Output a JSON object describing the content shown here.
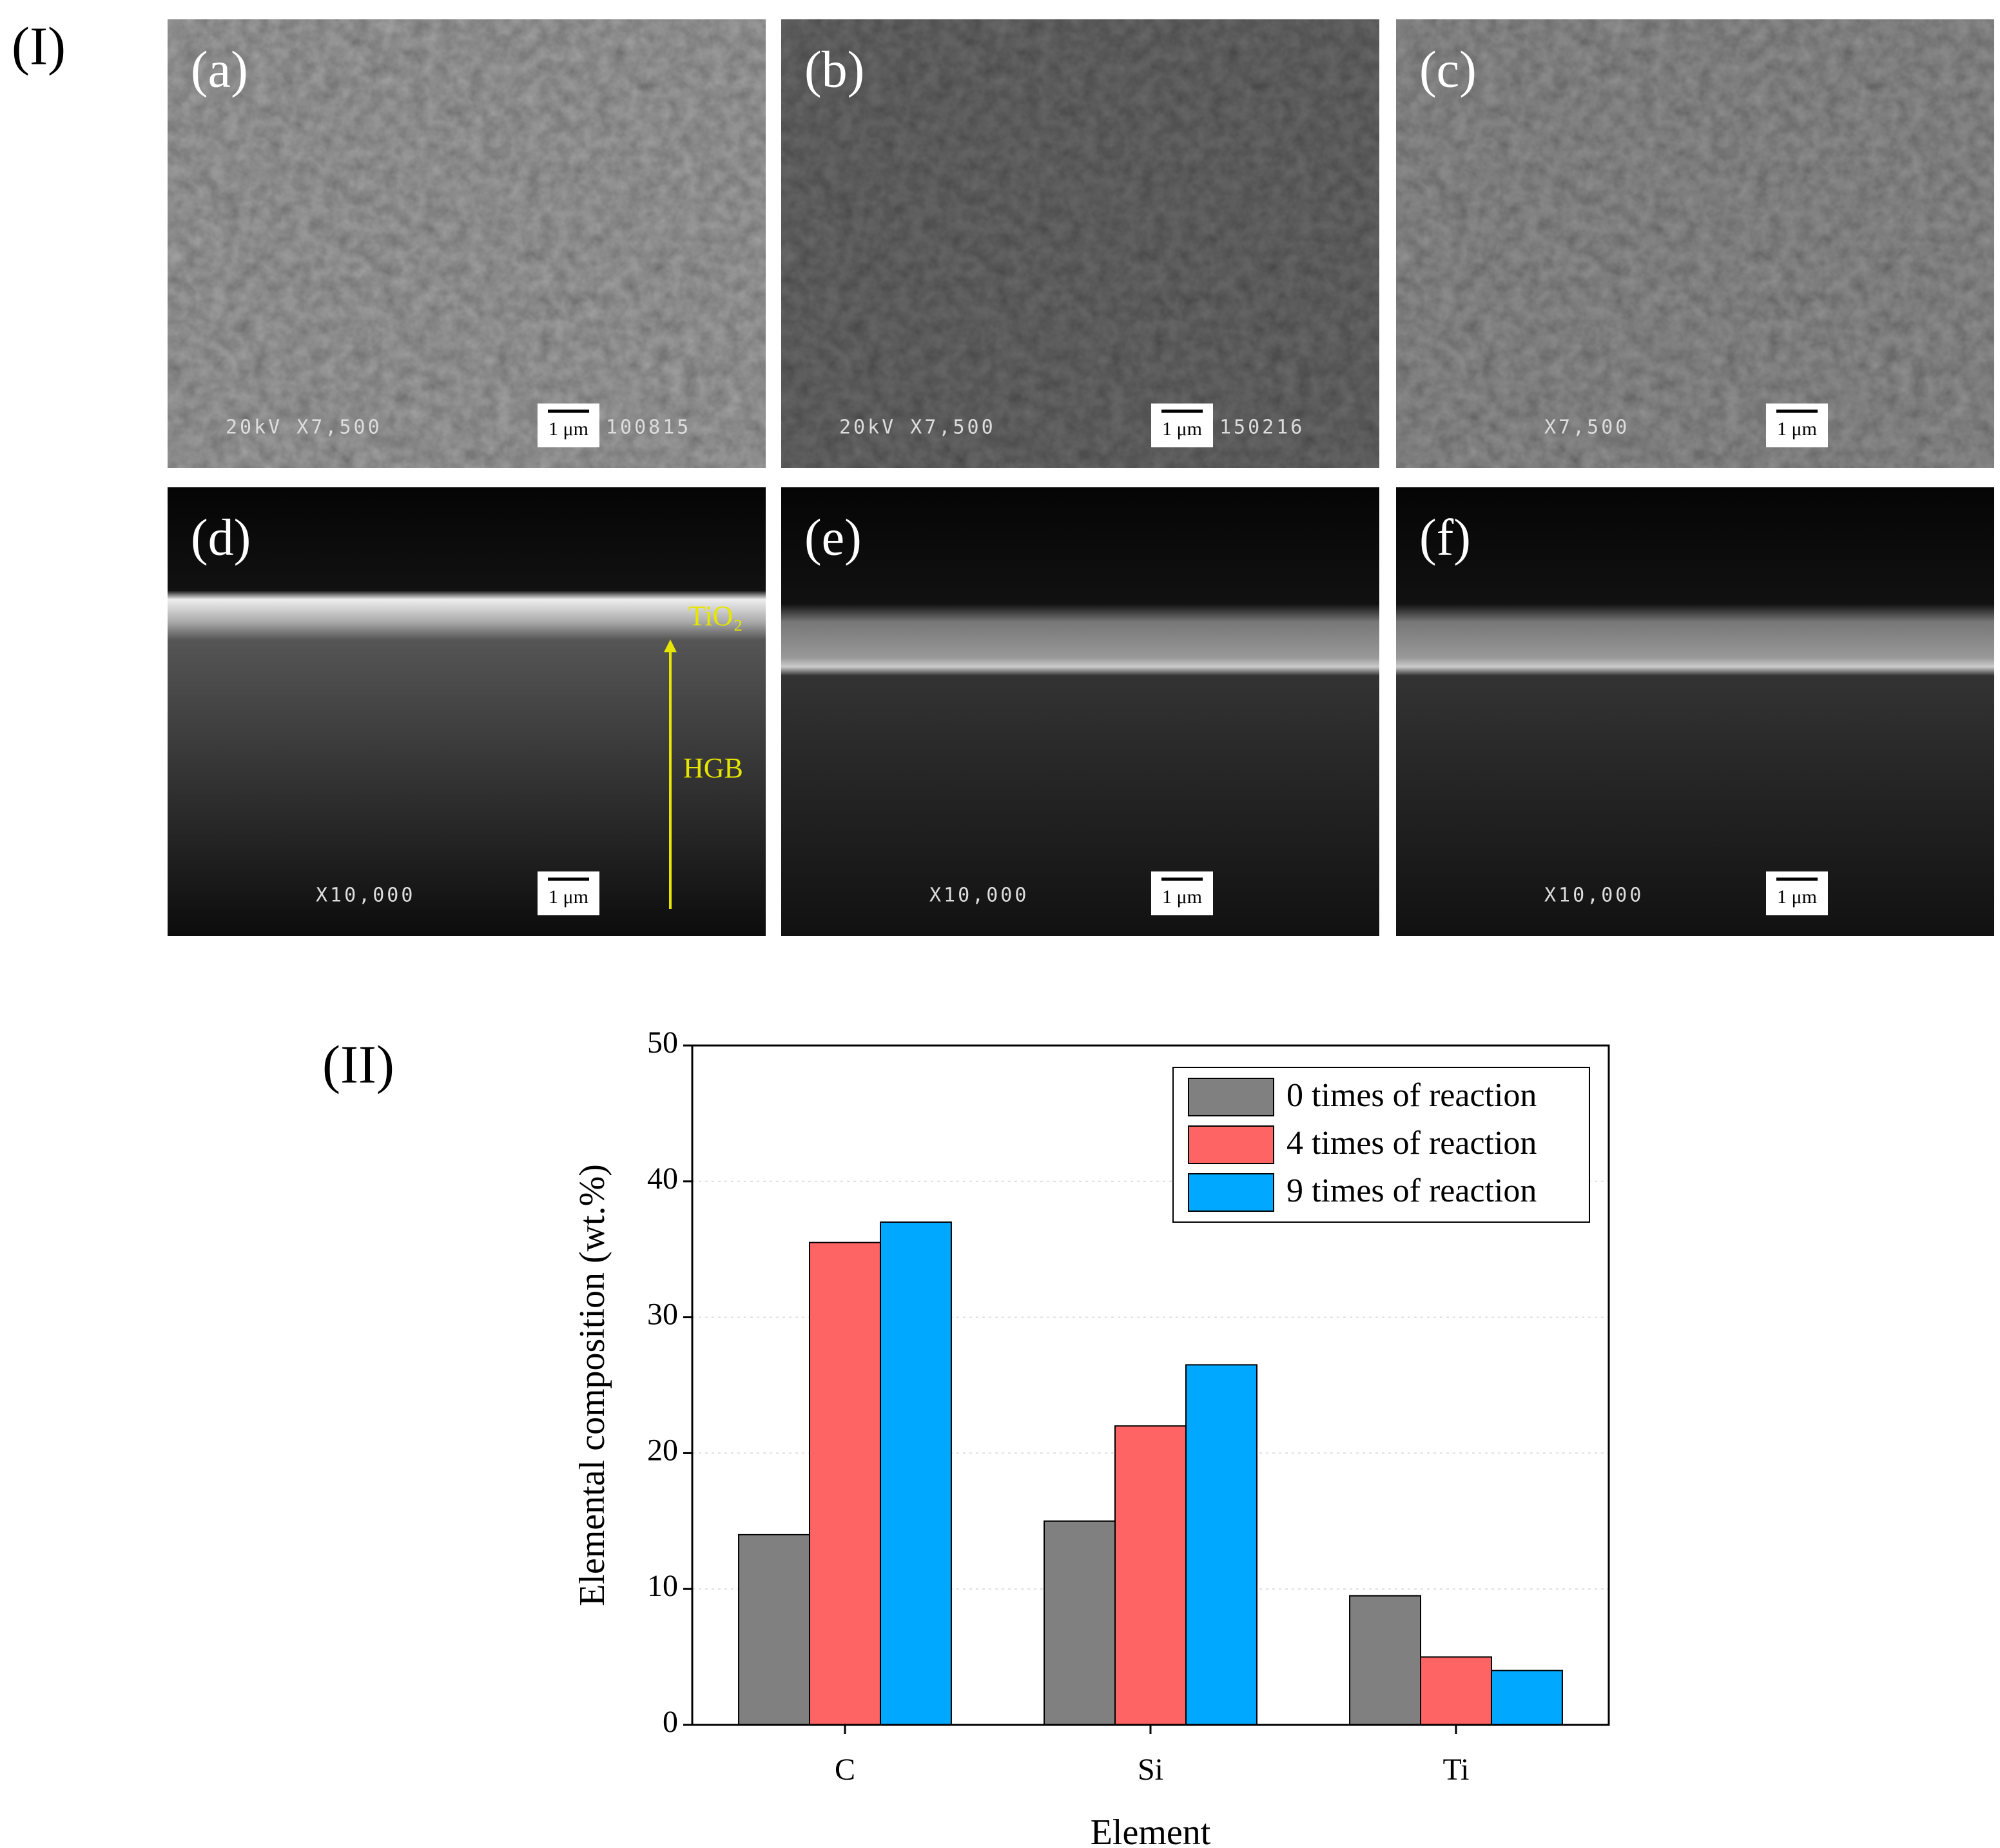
{
  "figure_label_I": "(I)",
  "sem_panels": [
    {
      "label": "(a)",
      "info": "20kV X7,500",
      "scale": "1 μm",
      "code": "100815"
    },
    {
      "label": "(b)",
      "info": "20kV X7,500",
      "scale": "1 μm",
      "code": "150216"
    },
    {
      "label": "(c)",
      "info": "X7,500",
      "scale": "1 μm"
    },
    {
      "label": "(d)",
      "info": "X10,000",
      "scale": "1 μm",
      "annotations": [
        "TiO₂",
        "HGB"
      ]
    },
    {
      "label": "(e)",
      "info": "X10,000",
      "scale": "1 μm"
    },
    {
      "label": "(f)",
      "info": "X10,000",
      "scale": "1 μm"
    }
  ],
  "figure_label_II": "(II)",
  "chart_data": {
    "type": "bar",
    "xlabel": "Element",
    "ylabel": "Elemental composition (wt.%)",
    "categories": [
      "C",
      "Si",
      "Ti"
    ],
    "series": [
      {
        "name": "0 times of reaction",
        "color": "#808080",
        "values": [
          14,
          15,
          9.5
        ]
      },
      {
        "name": "4 times of reaction",
        "color": "#ff6464",
        "values": [
          35.5,
          22,
          5
        ]
      },
      {
        "name": "9 times of reaction",
        "color": "#00a8ff",
        "values": [
          37,
          26.5,
          4
        ]
      }
    ],
    "ylim": [
      0,
      50
    ],
    "yticks": [
      0,
      10,
      20,
      30,
      40,
      50
    ],
    "grid": true,
    "legend": "top-right"
  }
}
